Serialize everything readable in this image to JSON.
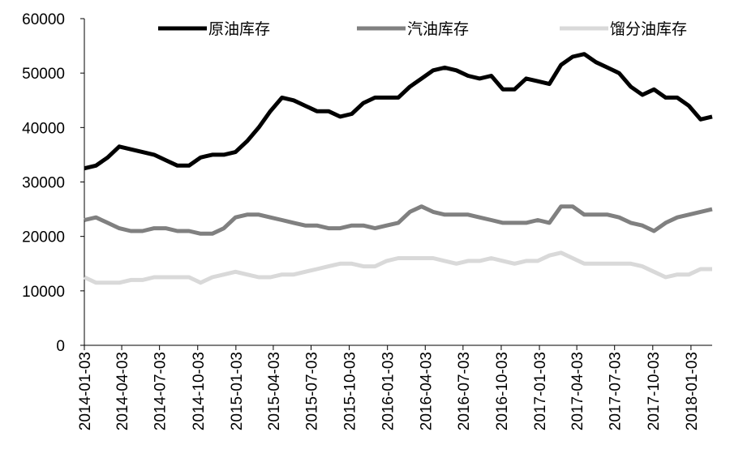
{
  "chart_data": {
    "type": "line",
    "x": [
      "2014-01-03",
      "2014-01-31",
      "2014-02-28",
      "2014-03-28",
      "2014-04-25",
      "2014-05-23",
      "2014-06-20",
      "2014-07-18",
      "2014-08-15",
      "2014-09-12",
      "2014-10-10",
      "2014-11-07",
      "2014-12-05",
      "2015-01-02",
      "2015-01-30",
      "2015-02-27",
      "2015-03-27",
      "2015-04-24",
      "2015-05-22",
      "2015-06-19",
      "2015-07-17",
      "2015-08-14",
      "2015-09-11",
      "2015-10-09",
      "2015-11-06",
      "2015-12-04",
      "2016-01-01",
      "2016-01-29",
      "2016-02-26",
      "2016-03-25",
      "2016-04-22",
      "2016-05-20",
      "2016-06-17",
      "2016-07-15",
      "2016-08-12",
      "2016-09-09",
      "2016-10-07",
      "2016-11-04",
      "2016-12-02",
      "2016-12-30",
      "2017-01-27",
      "2017-02-24",
      "2017-03-24",
      "2017-04-21",
      "2017-05-19",
      "2017-06-16",
      "2017-07-14",
      "2017-08-11",
      "2017-09-08",
      "2017-10-06",
      "2017-11-03",
      "2017-12-01",
      "2017-12-29",
      "2018-01-26",
      "2018-02-23"
    ],
    "series": [
      {
        "name": "原油库存",
        "color": "#000000",
        "values": [
          32500,
          33000,
          34500,
          36500,
          36000,
          35500,
          35000,
          34000,
          33000,
          33000,
          34500,
          35000,
          35000,
          35500,
          37500,
          40000,
          43000,
          45500,
          45000,
          44000,
          43000,
          43000,
          42000,
          42500,
          44500,
          45500,
          45500,
          45500,
          47500,
          49000,
          50500,
          51000,
          50500,
          49500,
          49000,
          49500,
          47000,
          47000,
          49000,
          48500,
          48000,
          51500,
          53000,
          53500,
          52000,
          51000,
          50000,
          47500,
          46000,
          47000,
          45500,
          45500,
          44000,
          41500,
          42000
        ]
      },
      {
        "name": "汽油库存",
        "color": "#808080",
        "values": [
          23000,
          23500,
          22500,
          21500,
          21000,
          21000,
          21500,
          21500,
          21000,
          21000,
          20500,
          20500,
          21500,
          23500,
          24000,
          24000,
          23500,
          23000,
          22500,
          22000,
          22000,
          21500,
          21500,
          22000,
          22000,
          21500,
          22000,
          22500,
          24500,
          25500,
          24500,
          24000,
          24000,
          24000,
          23500,
          23000,
          22500,
          22500,
          22500,
          23000,
          22500,
          25500,
          25500,
          24000,
          24000,
          24000,
          23500,
          22500,
          22000,
          21000,
          22500,
          23500,
          24000,
          24500,
          25000
        ]
      },
      {
        "name": "馏分油库存",
        "color": "#d9d9d9",
        "values": [
          12500,
          11500,
          11500,
          11500,
          12000,
          12000,
          12500,
          12500,
          12500,
          12500,
          11500,
          12500,
          13000,
          13500,
          13000,
          12500,
          12500,
          13000,
          13000,
          13500,
          14000,
          14500,
          15000,
          15000,
          14500,
          14500,
          15500,
          16000,
          16000,
          16000,
          16000,
          15500,
          15000,
          15500,
          15500,
          16000,
          15500,
          15000,
          15500,
          15500,
          16500,
          17000,
          16000,
          15000,
          15000,
          15000,
          15000,
          15000,
          14500,
          13500,
          12500,
          13000,
          13000,
          14000,
          14000
        ]
      }
    ],
    "xlim": [
      "2014-01-03",
      "2018-02-23"
    ],
    "xticks": [
      "2014-01-03",
      "2014-04-03",
      "2014-07-03",
      "2014-10-03",
      "2015-01-03",
      "2015-04-03",
      "2015-07-03",
      "2015-10-03",
      "2016-01-03",
      "2016-04-03",
      "2016-07-03",
      "2016-10-03",
      "2017-01-03",
      "2017-04-03",
      "2017-07-03",
      "2017-10-03",
      "2018-01-03"
    ],
    "ylim": [
      0,
      60000
    ],
    "yticks": [
      0,
      10000,
      20000,
      30000,
      40000,
      50000,
      60000
    ],
    "grid": false,
    "legend": "top"
  }
}
